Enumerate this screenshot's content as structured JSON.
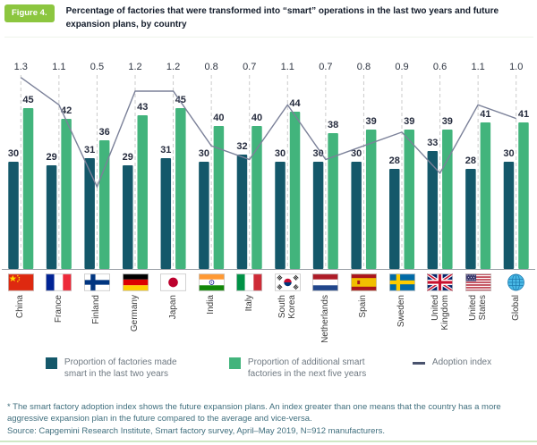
{
  "figure": {
    "badge": "Figure 4.",
    "title": "Percentage of factories that were transformed into “smart” operations in the last two years and future expansion plans, by country"
  },
  "chart_data": {
    "type": "bar",
    "subtype": "grouped-bars-with-line-overlay",
    "title": "Percentage of factories that were transformed into “smart” operations in the last two years and future expansion plans, by country",
    "categories": [
      "China",
      "France",
      "Finland",
      "Germany",
      "Japan",
      "India",
      "Italy",
      "South Korea",
      "Netherlands",
      "Spain",
      "Sweden",
      "United Kingdom",
      "United States",
      "Global"
    ],
    "category_labels": [
      "China",
      "France",
      "Finland",
      "Germany",
      "Japan",
      "India",
      "Italy",
      "South\nKorea",
      "Netherlands",
      "Spain",
      "Sweden",
      "United\nKingdom",
      "United\nStates",
      "Global"
    ],
    "category_icons": [
      "flag-china",
      "flag-france",
      "flag-finland",
      "flag-germany",
      "flag-japan",
      "flag-india",
      "flag-italy",
      "flag-south-korea",
      "flag-netherlands",
      "flag-spain",
      "flag-sweden",
      "flag-united-kingdom",
      "flag-united-states",
      "globe-icon"
    ],
    "series": [
      {
        "name": "Proportion of factories made smart in the last two years",
        "type": "bar",
        "color": "#14586A",
        "values": [
          30,
          29,
          31,
          29,
          31,
          30,
          32,
          30,
          30,
          30,
          28,
          33,
          28,
          30
        ]
      },
      {
        "name": "Proportion of additional smart factories in the next five years",
        "type": "bar",
        "color": "#42B47C",
        "values": [
          45,
          42,
          36,
          43,
          45,
          40,
          40,
          44,
          38,
          39,
          39,
          39,
          41,
          41
        ]
      },
      {
        "name": "Adoption index",
        "type": "line",
        "color": "#7B8199",
        "values": [
          1.3,
          1.1,
          0.5,
          1.2,
          1.2,
          0.8,
          0.7,
          1.1,
          0.7,
          0.8,
          0.9,
          0.6,
          1.1,
          1.0
        ]
      }
    ],
    "bar_ylim": [
      0,
      50
    ],
    "grid": "dashed vertical guide per category",
    "legend_position": "bottom"
  },
  "legend": {
    "items": [
      {
        "label": "Proportion of factories made smart in the last two years",
        "swatch": "#14586A",
        "shape": "square"
      },
      {
        "label": "Proportion of additional smart factories in the next five years",
        "swatch": "#42B47C",
        "shape": "square"
      },
      {
        "label": "Adoption index",
        "swatch": "#4A536E",
        "shape": "dash"
      }
    ]
  },
  "footnotes": {
    "note": "* The smart factory adoption index shows the future expansion plans. An index greater than one means that the country has a more aggressive expansion plan in the future compared to the average and vice-versa.",
    "source": "Source: Capgemini Research Institute, Smart factory survey, April–May 2019, N=912 manufacturers."
  }
}
